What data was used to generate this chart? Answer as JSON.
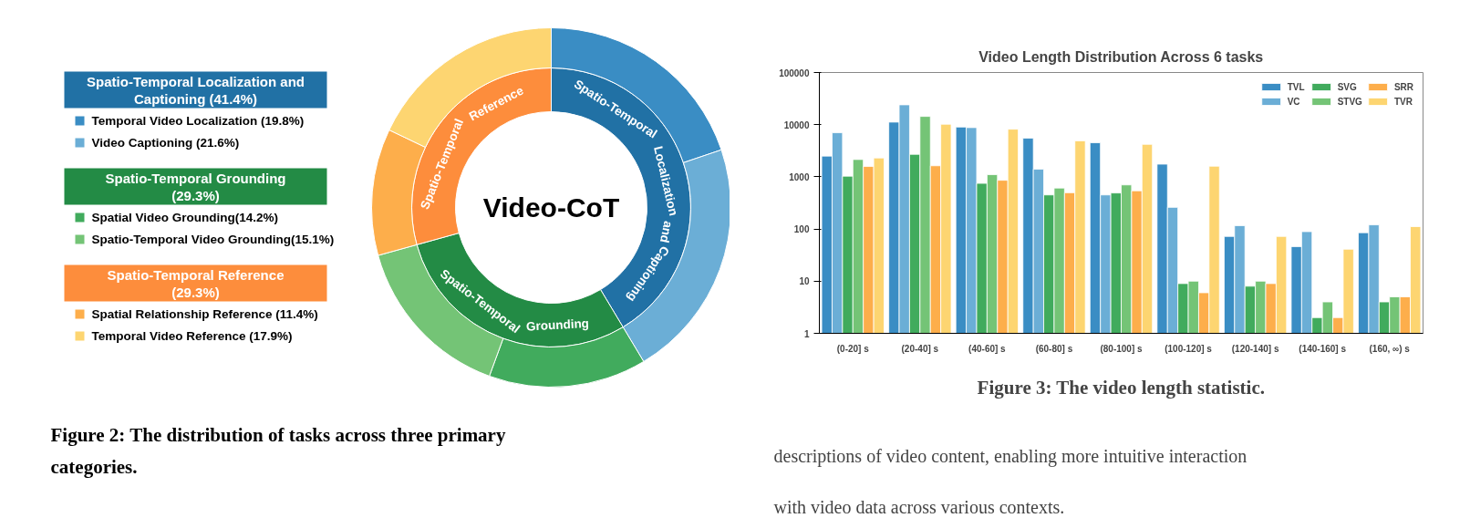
{
  "chart_data": [
    {
      "type": "donut",
      "title": "Video-CoT",
      "legend": "left",
      "categories": [
        "Temporal Video Localization (19.8%)",
        "Video Captioning (21.6%)",
        "Spatial Video Grounding(14.2%)",
        "Spatio-Temporal Video Grounding(15.1%)",
        "Spatial Relationship Reference (11.4%)",
        "Temporal Video Reference (17.9%)"
      ],
      "series": [
        {
          "values": [
            41.4,
            null,
            29.3,
            null,
            29.3,
            null
          ],
          "colors": [
            "#2171a5",
            null,
            "#238b45",
            null,
            "#fd8d3c",
            null
          ]
        },
        {
          "values": [
            19.8,
            21.6,
            14.2,
            15.1,
            11.4,
            17.9
          ],
          "colors": [
            "#3a8dc4",
            "#6baed6",
            "#41ab5d",
            "#74c476",
            "#fdae4b",
            "#fdd571"
          ]
        }
      ],
      "annotations": [
        "Spatio-Temporal Localization and Captioning",
        "Spatio-Temporal Grounding",
        "Spatio-Temporal Reference",
        "Spatio-Temporal Localization and Captioning (41.4%)",
        "Spatio-Temporal Grounding (29.3%)",
        "Spatio-Temporal Reference (29.3%)",
        "Figure 2: The distribution of tasks across three primary categories."
      ]
    },
    {
      "type": "bar",
      "title": "Video Length Distribution Across 6 tasks",
      "log": true,
      "grid": false,
      "legend": "top right",
      "categories": [
        "(0-20] s",
        "(20-40] s",
        "(40-60] s",
        "(60-80] s",
        "(80-100] s",
        "(100-120] s",
        "(120-140] s",
        "(140-160] s",
        "(160, ∞) s"
      ],
      "ylim": [
        1,
        100000
      ],
      "yticks": [
        1,
        10,
        100,
        1000,
        10000,
        100000
      ],
      "series": [
        {
          "name": "TVL",
          "color": "#3a8dc4",
          "values": [
            2500,
            11200,
            9000,
            5500,
            4500,
            1750,
            72,
            46,
            85
          ]
        },
        {
          "name": "VC",
          "color": "#6baed6",
          "values": [
            7000,
            24000,
            8800,
            1400,
            450,
            260,
            116,
            89,
            120
          ]
        },
        {
          "name": "SVG",
          "color": "#41ab5d",
          "values": [
            1030,
            2700,
            750,
            450,
            490,
            9,
            8,
            2,
            4
          ]
        },
        {
          "name": "STVG",
          "color": "#74c476",
          "values": [
            2150,
            14400,
            1100,
            610,
            700,
            10,
            10,
            4,
            5
          ]
        },
        {
          "name": "SRR",
          "color": "#fdae4b",
          "values": [
            1580,
            1630,
            860,
            495,
            540,
            6,
            9,
            2,
            5
          ]
        },
        {
          "name": "TVR",
          "color": "#fdd571",
          "values": [
            2300,
            10200,
            8200,
            4900,
            4200,
            1600,
            72,
            41,
            111
          ]
        }
      ],
      "annotations": [
        "Figure 3: The video length statistic.",
        "descriptions of video content, enabling more intuitive interaction with video data across various contexts."
      ]
    }
  ]
}
